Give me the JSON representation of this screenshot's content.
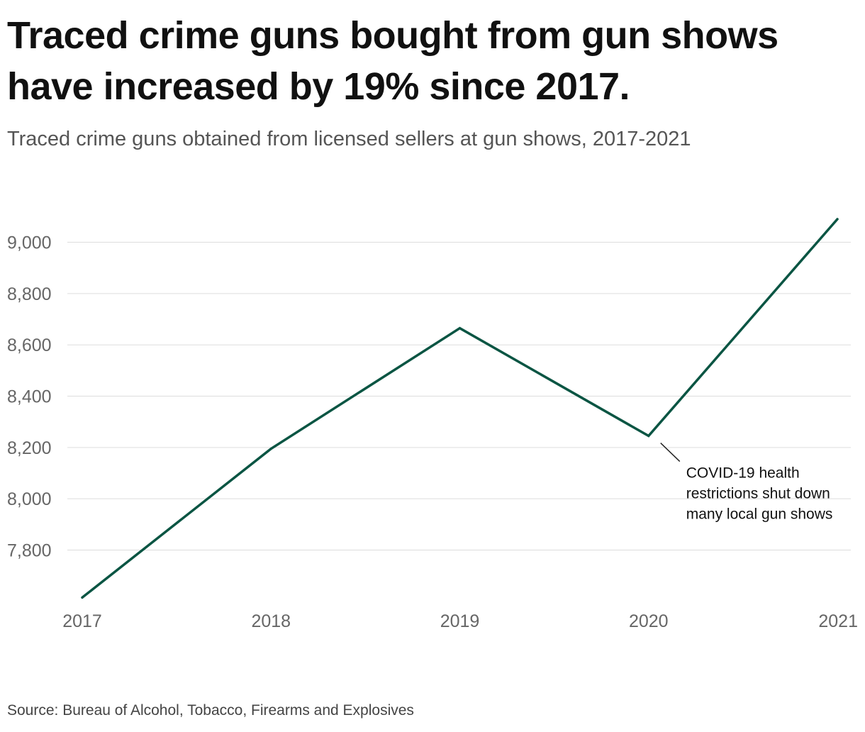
{
  "title": "Traced crime guns bought from gun shows have increased by 19% since 2017.",
  "subtitle": "Traced crime guns obtained from licensed sellers at gun shows, 2017-2021",
  "source": "Source: Bureau of Alcohol, Tobacco, Firearms and Explosives",
  "colors": {
    "line": "#0b5543",
    "grid": "#dddddd",
    "tick": "#666666"
  },
  "chart_data": {
    "type": "line",
    "title": "Traced crime guns bought from gun shows have increased by 19% since 2017.",
    "subtitle": "Traced crime guns obtained from licensed sellers at gun shows, 2017-2021",
    "x": [
      "2017",
      "2018",
      "2019",
      "2020",
      "2021"
    ],
    "series": [
      {
        "values": [
          7615,
          8195,
          8665,
          8245,
          9090
        ]
      }
    ],
    "yticks": [
      7800,
      8000,
      8200,
      8400,
      8600,
      8800,
      9000
    ],
    "ytick_labels": [
      "7,800",
      "8,000",
      "8,200",
      "8,400",
      "8,600",
      "8,800",
      "9,000"
    ],
    "ylim": [
      7605,
      9090
    ],
    "grid": true,
    "annotations": [
      {
        "x": "2020",
        "lines": [
          "COVID-19 health",
          "restrictions shut down",
          "many local gun shows"
        ]
      }
    ]
  }
}
